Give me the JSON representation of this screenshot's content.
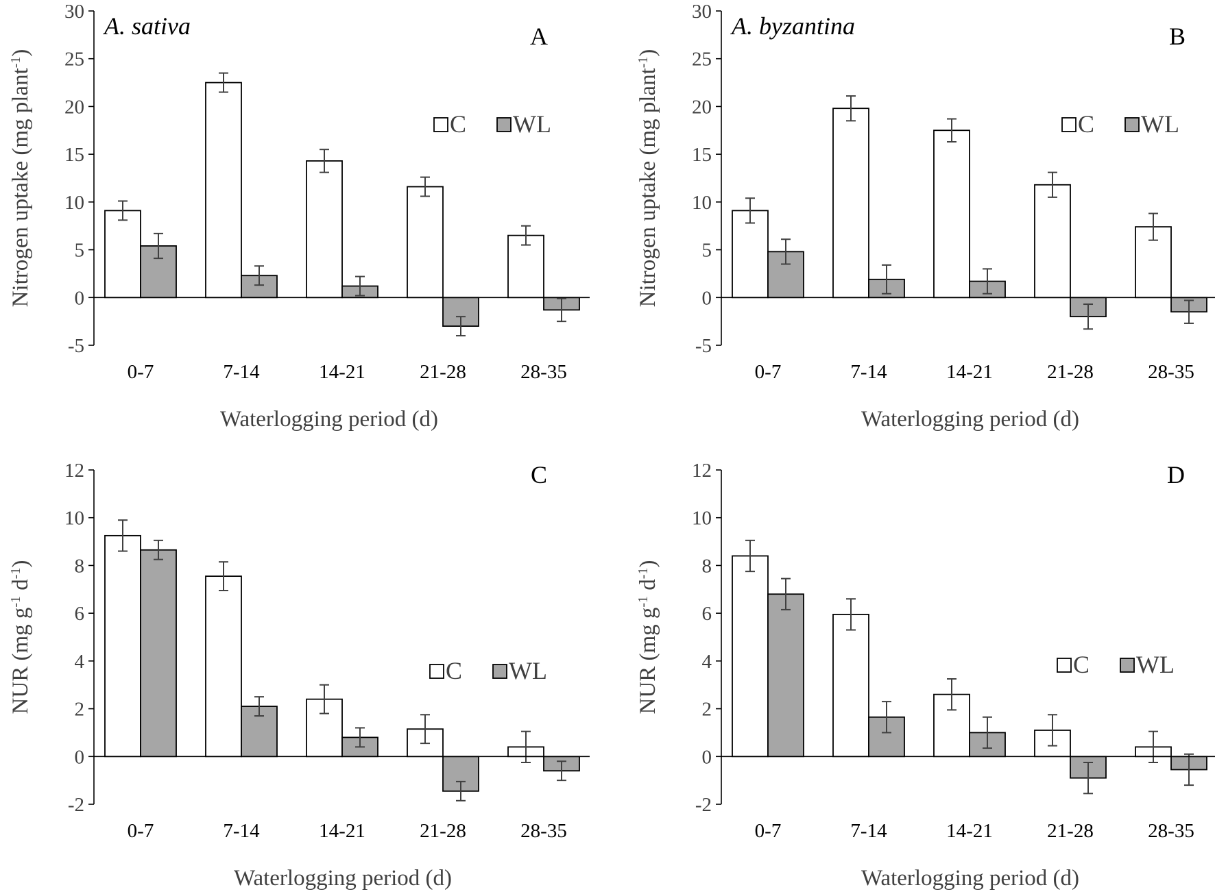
{
  "colors": {
    "control_fill": "#ffffff",
    "waterlogged_fill": "#a6a6a6",
    "bar_stroke": "#000000",
    "error_bar": "#404040",
    "axis": "#000000",
    "tick_label": "#404040",
    "axis_title": "#404040",
    "panel_letter": "#000000"
  },
  "chart_data": [
    {
      "type": "bar",
      "panel": "A",
      "species": "A. sativa",
      "xlabel": "Waterlogging period (d)",
      "ylabel_main": "Nitrogen uptake (mg plant",
      "ylabel_sup": "-1",
      "ylabel_end": ")",
      "ylim": [
        -5,
        30
      ],
      "yticks": [
        -5,
        0,
        5,
        10,
        15,
        20,
        25,
        30
      ],
      "categories": [
        "0-7",
        "7-14",
        "14-21",
        "21-28",
        "28-35"
      ],
      "legend": "right-middle",
      "series": [
        {
          "name": "C",
          "values": [
            9.1,
            22.5,
            14.3,
            11.6,
            6.5
          ],
          "errors": [
            1.0,
            1.0,
            1.2,
            1.0,
            1.0
          ]
        },
        {
          "name": "WL",
          "values": [
            5.4,
            2.3,
            1.2,
            -3.0,
            -1.3
          ],
          "errors": [
            1.3,
            1.0,
            1.0,
            1.0,
            1.2
          ]
        }
      ]
    },
    {
      "type": "bar",
      "panel": "B",
      "species": "A. byzantina",
      "xlabel": "Waterlogging period (d)",
      "ylabel_main": "Nitrogen uptake (mg plant",
      "ylabel_sup": "-1",
      "ylabel_end": ")",
      "ylim": [
        -5,
        30
      ],
      "yticks": [
        -5,
        0,
        5,
        10,
        15,
        20,
        25,
        30
      ],
      "categories": [
        "0-7",
        "7-14",
        "14-21",
        "21-28",
        "28-35"
      ],
      "legend": "right-middle",
      "series": [
        {
          "name": "C",
          "values": [
            9.1,
            19.8,
            17.5,
            11.8,
            7.4
          ],
          "errors": [
            1.3,
            1.3,
            1.2,
            1.3,
            1.4
          ]
        },
        {
          "name": "WL",
          "values": [
            4.8,
            1.9,
            1.7,
            -2.0,
            -1.5
          ],
          "errors": [
            1.3,
            1.5,
            1.3,
            1.3,
            1.2
          ]
        }
      ]
    },
    {
      "type": "bar",
      "panel": "C",
      "species": "",
      "xlabel": "Waterlogging period (d)",
      "ylabel_main": "NUR (mg g",
      "ylabel_sup": "-1",
      "ylabel_mid": " d",
      "ylabel_sup2": "-1",
      "ylabel_end": ")",
      "ylim": [
        -2,
        12
      ],
      "yticks": [
        -2,
        0,
        2,
        4,
        6,
        8,
        10,
        12
      ],
      "categories": [
        "0-7",
        "7-14",
        "14-21",
        "21-28",
        "28-35"
      ],
      "legend": "right-middle",
      "series": [
        {
          "name": "C",
          "values": [
            9.25,
            7.55,
            2.4,
            1.15,
            0.4
          ],
          "errors": [
            0.65,
            0.6,
            0.6,
            0.6,
            0.65
          ]
        },
        {
          "name": "WL",
          "values": [
            8.65,
            2.1,
            0.8,
            -1.45,
            -0.6
          ],
          "errors": [
            0.4,
            0.4,
            0.4,
            0.4,
            0.4
          ]
        }
      ]
    },
    {
      "type": "bar",
      "panel": "D",
      "species": "",
      "xlabel": "Waterlogging period (d)",
      "ylabel_main": "NUR (mg g",
      "ylabel_sup": "-1",
      "ylabel_mid": " d",
      "ylabel_sup2": "-1",
      "ylabel_end": ")",
      "ylim": [
        -2,
        12
      ],
      "yticks": [
        -2,
        0,
        2,
        4,
        6,
        8,
        10,
        12
      ],
      "categories": [
        "0-7",
        "7-14",
        "14-21",
        "21-28",
        "28-35"
      ],
      "legend": "right-middle",
      "series": [
        {
          "name": "C",
          "values": [
            8.4,
            5.95,
            2.6,
            1.1,
            0.4
          ],
          "errors": [
            0.65,
            0.65,
            0.65,
            0.65,
            0.65
          ]
        },
        {
          "name": "WL",
          "values": [
            6.8,
            1.65,
            1.0,
            -0.9,
            -0.55
          ],
          "errors": [
            0.65,
            0.65,
            0.65,
            0.65,
            0.65
          ]
        }
      ]
    }
  ]
}
